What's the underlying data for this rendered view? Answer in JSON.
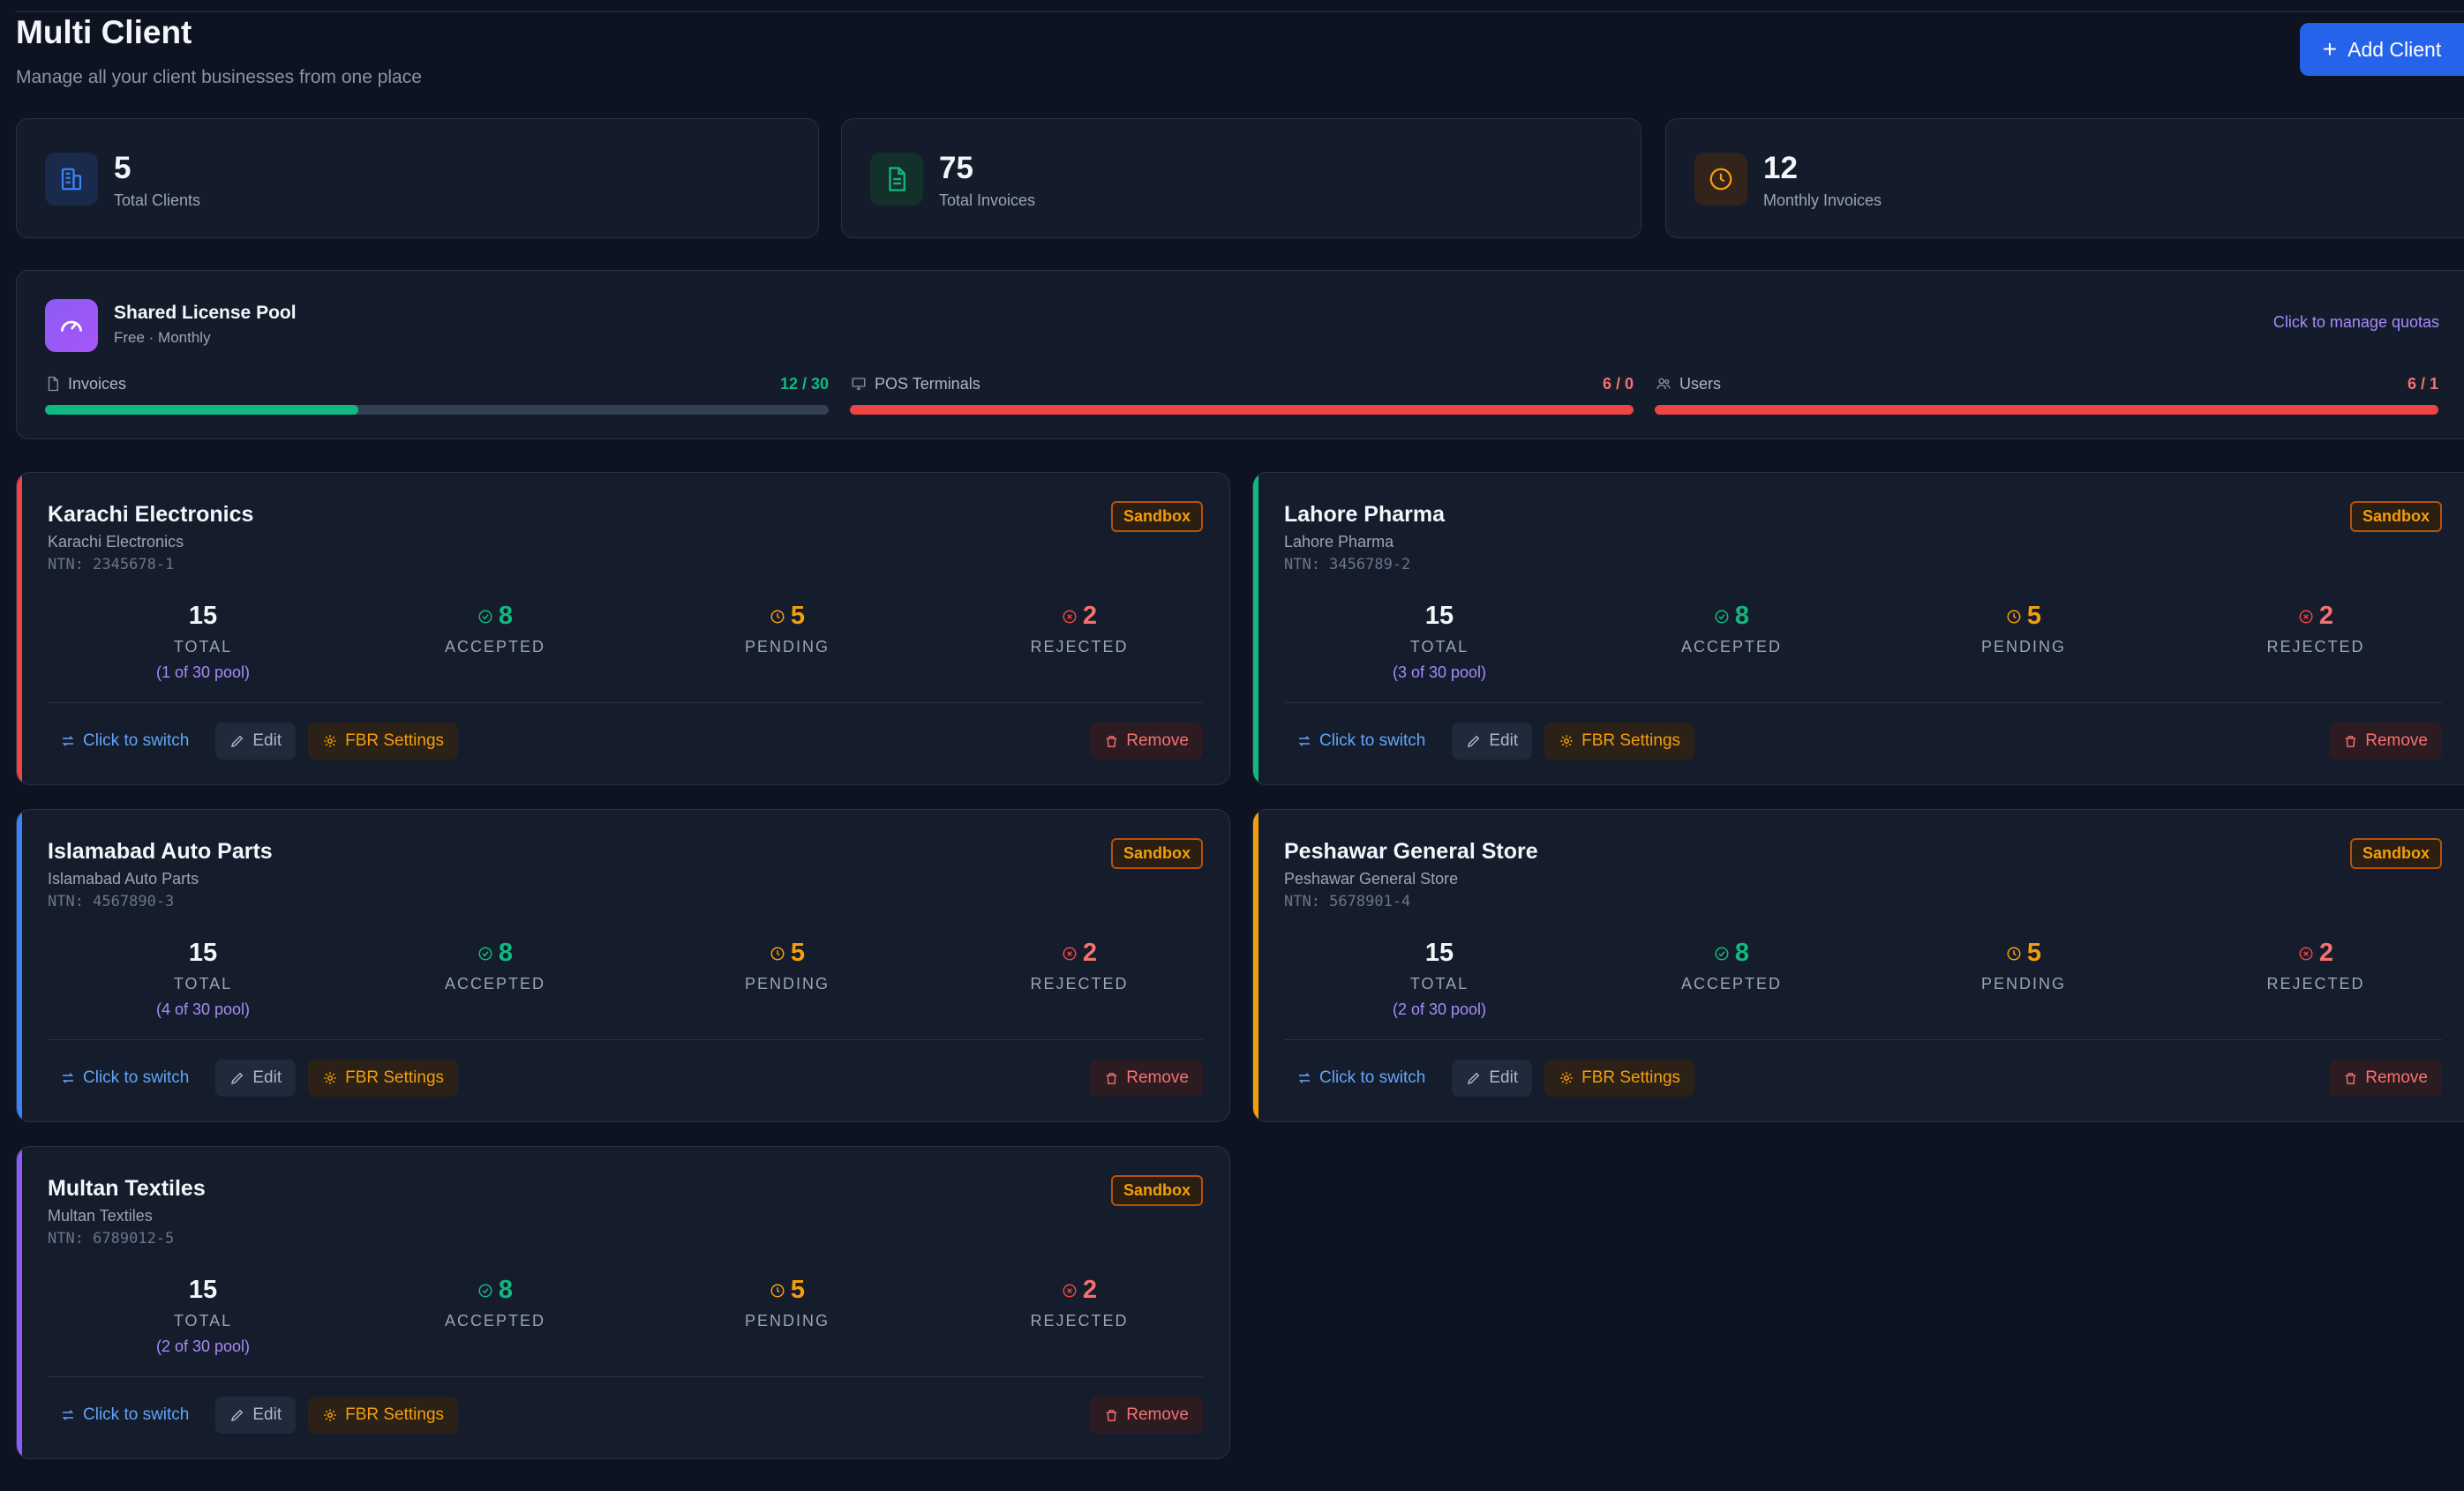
{
  "page": {
    "title": "Multi Client",
    "subtitle": "Manage all your client businesses from one place",
    "add_client_label": "Add Client"
  },
  "stats": [
    {
      "value": "5",
      "label": "Total Clients",
      "icon": "building-icon",
      "color": "#3b82f6"
    },
    {
      "value": "75",
      "label": "Total Invoices",
      "icon": "document-icon",
      "color": "#10b981"
    },
    {
      "value": "12",
      "label": "Monthly Invoices",
      "icon": "clock-icon",
      "color": "#f59e0b"
    }
  ],
  "license_pool": {
    "title": "Shared License Pool",
    "plan": "Free · Monthly",
    "manage_link": "Click to manage quotas",
    "meters": [
      {
        "name": "Invoices",
        "value": "12 / 30",
        "fraction": 0.4,
        "color": "#10b981",
        "icon": "document-icon"
      },
      {
        "name": "POS Terminals",
        "value": "6 / 0",
        "fraction": 1.0,
        "color": "#ef4444",
        "icon": "monitor-icon"
      },
      {
        "name": "Users",
        "value": "6 / 1",
        "fraction": 1.0,
        "color": "#ef4444",
        "icon": "users-icon"
      }
    ]
  },
  "labels": {
    "total": "TOTAL",
    "accepted": "ACCEPTED",
    "pending": "PENDING",
    "rejected": "REJECTED",
    "switch": "Click to switch",
    "edit": "Edit",
    "fbr": "FBR Settings",
    "remove": "Remove"
  },
  "clients": [
    {
      "name": "Karachi Electronics",
      "business": "Karachi Electronics",
      "ntn": "NTN: 2345678-1",
      "badge": "Sandbox",
      "accent": "#ef4444",
      "total": "15",
      "pool": "(1 of 30 pool)",
      "accepted": "8",
      "pending": "5",
      "rejected": "2"
    },
    {
      "name": "Lahore Pharma",
      "business": "Lahore Pharma",
      "ntn": "NTN: 3456789-2",
      "badge": "Sandbox",
      "accent": "#10b981",
      "total": "15",
      "pool": "(3 of 30 pool)",
      "accepted": "8",
      "pending": "5",
      "rejected": "2"
    },
    {
      "name": "Islamabad Auto Parts",
      "business": "Islamabad Auto Parts",
      "ntn": "NTN: 4567890-3",
      "badge": "Sandbox",
      "accent": "#3b82f6",
      "total": "15",
      "pool": "(4 of 30 pool)",
      "accepted": "8",
      "pending": "5",
      "rejected": "2"
    },
    {
      "name": "Peshawar General Store",
      "business": "Peshawar General Store",
      "ntn": "NTN: 5678901-4",
      "badge": "Sandbox",
      "accent": "#f59e0b",
      "total": "15",
      "pool": "(2 of 30 pool)",
      "accepted": "8",
      "pending": "5",
      "rejected": "2"
    },
    {
      "name": "Multan Textiles",
      "business": "Multan Textiles",
      "ntn": "NTN: 6789012-5",
      "badge": "Sandbox",
      "accent": "#8b5cf6",
      "total": "15",
      "pool": "(2 of 30 pool)",
      "accepted": "8",
      "pending": "5",
      "rejected": "2"
    }
  ],
  "colors": {
    "accepted": "#10b981",
    "pending": "#f59e0b",
    "rejected": "#ef4444"
  }
}
